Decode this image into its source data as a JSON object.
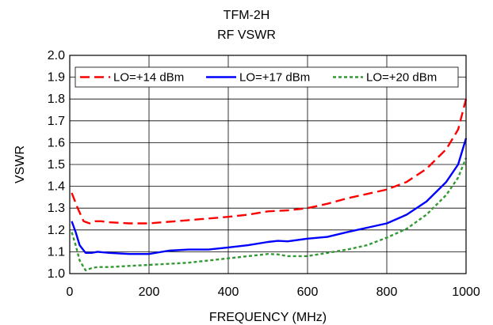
{
  "chart_data": {
    "type": "line",
    "title": "TFM-2H",
    "subtitle": "RF VSWR",
    "xlabel": "FREQUENCY (MHz)",
    "ylabel": "VSWR",
    "xlim": [
      0,
      1000
    ],
    "ylim": [
      1.0,
      2.0
    ],
    "x_ticks": [
      "0",
      "200",
      "400",
      "600",
      "800",
      "1000"
    ],
    "y_ticks": [
      "1.0",
      "1.1",
      "1.2",
      "1.3",
      "1.4",
      "1.5",
      "1.6",
      "1.7",
      "1.8",
      "1.9",
      "2.0"
    ],
    "grid": true,
    "legend_position": "top",
    "series": [
      {
        "name": "LO=+14 dBm",
        "color": "#ff0000",
        "style": "dashed",
        "points": [
          [
            5,
            1.37
          ],
          [
            20,
            1.3
          ],
          [
            35,
            1.24
          ],
          [
            50,
            1.23
          ],
          [
            65,
            1.24
          ],
          [
            80,
            1.24
          ],
          [
            100,
            1.235
          ],
          [
            150,
            1.23
          ],
          [
            200,
            1.23
          ],
          [
            300,
            1.245
          ],
          [
            400,
            1.26
          ],
          [
            450,
            1.27
          ],
          [
            500,
            1.285
          ],
          [
            550,
            1.29
          ],
          [
            600,
            1.3
          ],
          [
            650,
            1.32
          ],
          [
            700,
            1.345
          ],
          [
            750,
            1.365
          ],
          [
            800,
            1.385
          ],
          [
            850,
            1.42
          ],
          [
            900,
            1.48
          ],
          [
            950,
            1.57
          ],
          [
            980,
            1.66
          ],
          [
            1000,
            1.8
          ]
        ]
      },
      {
        "name": "LO=+17 dBm",
        "color": "#0000ff",
        "style": "solid",
        "points": [
          [
            5,
            1.24
          ],
          [
            15,
            1.19
          ],
          [
            25,
            1.13
          ],
          [
            40,
            1.095
          ],
          [
            55,
            1.095
          ],
          [
            70,
            1.1
          ],
          [
            100,
            1.095
          ],
          [
            150,
            1.09
          ],
          [
            200,
            1.09
          ],
          [
            250,
            1.105
          ],
          [
            300,
            1.11
          ],
          [
            350,
            1.11
          ],
          [
            400,
            1.12
          ],
          [
            450,
            1.13
          ],
          [
            500,
            1.145
          ],
          [
            525,
            1.15
          ],
          [
            550,
            1.148
          ],
          [
            600,
            1.16
          ],
          [
            650,
            1.168
          ],
          [
            700,
            1.19
          ],
          [
            750,
            1.21
          ],
          [
            800,
            1.23
          ],
          [
            850,
            1.27
          ],
          [
            900,
            1.33
          ],
          [
            950,
            1.42
          ],
          [
            980,
            1.5
          ],
          [
            1000,
            1.62
          ]
        ]
      },
      {
        "name": "LO=+20 dBm",
        "color": "#339933",
        "style": "dotted",
        "points": [
          [
            5,
            1.19
          ],
          [
            15,
            1.13
          ],
          [
            25,
            1.06
          ],
          [
            40,
            1.015
          ],
          [
            55,
            1.025
          ],
          [
            70,
            1.03
          ],
          [
            100,
            1.03
          ],
          [
            150,
            1.035
          ],
          [
            200,
            1.04
          ],
          [
            300,
            1.05
          ],
          [
            400,
            1.07
          ],
          [
            500,
            1.09
          ],
          [
            525,
            1.088
          ],
          [
            550,
            1.08
          ],
          [
            600,
            1.08
          ],
          [
            650,
            1.095
          ],
          [
            700,
            1.11
          ],
          [
            750,
            1.13
          ],
          [
            800,
            1.165
          ],
          [
            850,
            1.205
          ],
          [
            900,
            1.27
          ],
          [
            950,
            1.36
          ],
          [
            980,
            1.44
          ],
          [
            1000,
            1.53
          ]
        ]
      }
    ]
  }
}
